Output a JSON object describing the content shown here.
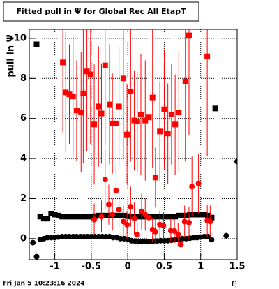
{
  "chart_data": {
    "type": "scatter",
    "title": "Fitted pull in  Ψ  for Global Rec All EtapT",
    "y_label": "pull in Ψ",
    "x_label": "η",
    "footer": "Fri Jan  5 10:23:16 2024",
    "xlim": [
      -1.35,
      1.5
    ],
    "ylim": [
      -1.05,
      10.45
    ],
    "xticks": [
      -1,
      -0.5,
      0,
      0.5,
      1,
      1.5
    ],
    "yticks": [
      0,
      2,
      4,
      6,
      8,
      10
    ],
    "grid": true,
    "series": [
      {
        "marker": "square",
        "color": "#000000",
        "x": [
          -1.25,
          -1.2,
          -1.15,
          -1.1,
          -1.05,
          -1.0,
          -0.95,
          -0.9,
          -0.85,
          -0.8,
          -0.75,
          -0.7,
          -0.65,
          -0.6,
          -0.55,
          -0.5,
          -0.45,
          -0.4,
          -0.35,
          -0.3,
          -0.25,
          -0.2,
          -0.15,
          -0.1,
          -0.05,
          0,
          0.05,
          0.1,
          0.15,
          0.2,
          0.25,
          0.3,
          0.35,
          0.4,
          0.45,
          0.5,
          0.55,
          0.6,
          0.65,
          0.7,
          0.75,
          0.8,
          0.85,
          0.9,
          0.95,
          1.0,
          1.05,
          1.1,
          1.15,
          1.2
        ],
        "values": [
          9.7,
          1.1,
          1.0,
          1.0,
          1.25,
          1.2,
          1.15,
          1.1,
          1.1,
          1.1,
          1.1,
          1.1,
          1.1,
          1.1,
          1.1,
          1.1,
          1.12,
          1.15,
          1.15,
          1.15,
          1.15,
          1.15,
          1.15,
          1.15,
          1.15,
          1.12,
          1.1,
          1.1,
          1.1,
          1.1,
          1.1,
          1.1,
          1.1,
          1.1,
          1.1,
          1.1,
          1.1,
          1.1,
          1.1,
          1.15,
          1.15,
          1.15,
          1.2,
          1.2,
          1.2,
          1.2,
          1.2,
          1.15,
          1.05,
          6.5
        ]
      },
      {
        "marker": "circle",
        "color": "#000000",
        "x": [
          -1.3,
          -1.25,
          -1.2,
          -1.15,
          -1.1,
          -1.05,
          -1.0,
          -0.95,
          -0.9,
          -0.85,
          -0.8,
          -0.75,
          -0.7,
          -0.65,
          -0.6,
          -0.55,
          -0.5,
          -0.45,
          -0.4,
          -0.35,
          -0.3,
          -0.25,
          -0.2,
          -0.15,
          -0.1,
          -0.05,
          0,
          0.05,
          0.1,
          0.15,
          0.2,
          0.25,
          0.3,
          0.35,
          0.4,
          0.45,
          0.5,
          0.55,
          0.6,
          0.65,
          0.7,
          0.75,
          0.8,
          0.85,
          0.9,
          0.95,
          1.0,
          1.05,
          1.1,
          1.15,
          1.35,
          1.5
        ],
        "values": [
          -0.2,
          -0.9,
          -0.05,
          0.0,
          0.05,
          0.05,
          0.05,
          0.08,
          0.1,
          0.1,
          0.1,
          0.1,
          0.1,
          0.1,
          0.1,
          0.1,
          0.1,
          0.1,
          0.1,
          0.1,
          0.1,
          0.1,
          0.05,
          0.05,
          0.0,
          0.0,
          -0.05,
          -0.1,
          -0.12,
          -0.15,
          -0.15,
          -0.15,
          -0.15,
          -0.12,
          -0.12,
          -0.1,
          -0.1,
          -0.1,
          -0.08,
          -0.05,
          -0.05,
          0,
          0,
          0.02,
          0.05,
          0.05,
          0.08,
          0.1,
          0.1,
          -0.05,
          0.15,
          3.85
        ]
      },
      {
        "marker": "square",
        "color": "#ff0000",
        "x": [
          -0.89,
          -0.85,
          -0.8,
          -0.75,
          -0.7,
          -0.64,
          -0.61,
          -0.56,
          -0.51,
          -0.46,
          -0.4,
          -0.36,
          -0.31,
          -0.25,
          -0.21,
          -0.16,
          -0.12,
          -0.06,
          -0.01,
          0.04,
          0.09,
          0.13,
          0.18,
          0.24,
          0.29,
          0.34,
          0.38,
          0.44,
          0.5,
          0.55,
          0.6,
          0.65,
          0.7,
          0.79,
          0.84,
          1.09
        ],
        "values": [
          8.8,
          7.3,
          7.2,
          7.1,
          6.4,
          6.3,
          7.25,
          8.35,
          8.2,
          5.7,
          6.6,
          6.25,
          8.65,
          6.7,
          5.75,
          5.75,
          6.6,
          8.0,
          5.2,
          7.35,
          5.9,
          5.85,
          6.2,
          5.9,
          6.05,
          7.05,
          3.05,
          5.35,
          6.45,
          5.25,
          6.2,
          5.7,
          6.3,
          7.85,
          10.15,
          9.1
        ],
        "errors": [
          3.5,
          3,
          2.5,
          3,
          2.5,
          3,
          3.5,
          4,
          3.5,
          3,
          3,
          2.5,
          4,
          3,
          2.5,
          2.5,
          3,
          4,
          2.5,
          3.5,
          2.5,
          2.5,
          3,
          3,
          2.5,
          3.5,
          1.5,
          2.5,
          3,
          2.5,
          2.5,
          2.5,
          3,
          4,
          5,
          5
        ]
      },
      {
        "marker": "circle",
        "color": "#ff0000",
        "x": [
          -0.46,
          -0.36,
          -0.31,
          -0.26,
          -0.21,
          -0.16,
          -0.12,
          -0.06,
          -0.01,
          0.04,
          0.09,
          0.13,
          0.19,
          0.24,
          0.29,
          0.34,
          0.38,
          0.44,
          0.49,
          0.59,
          0.64,
          0.69,
          0.73,
          0.78,
          0.84,
          0.88,
          0.97,
          1.09,
          1.13
        ],
        "values": [
          0.95,
          1.1,
          2.95,
          1.7,
          1.2,
          2.4,
          1.45,
          0.85,
          0.7,
          1.6,
          1.0,
          0.2,
          1.35,
          1.2,
          1.05,
          0.45,
          0.35,
          0.7,
          0.65,
          0.4,
          0.38,
          0.2,
          -0.3,
          0.85,
          0.8,
          2.6,
          2.75,
          0.9,
          0.85
        ],
        "errors": [
          0.8,
          0.8,
          1.5,
          1.0,
          0.8,
          1.2,
          0.9,
          0.8,
          0.7,
          1.0,
          0.8,
          0.6,
          0.9,
          0.8,
          0.8,
          0.6,
          0.6,
          0.7,
          0.7,
          0.6,
          0.6,
          0.6,
          0.6,
          0.8,
          0.8,
          1.5,
          1.5,
          0.8,
          0.8
        ]
      }
    ]
  }
}
